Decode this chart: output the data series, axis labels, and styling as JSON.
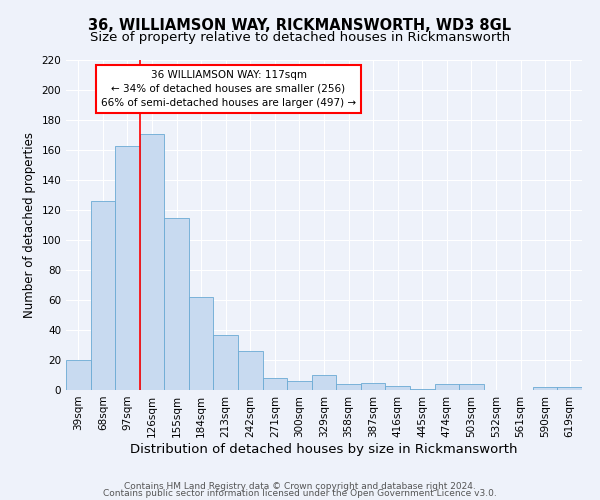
{
  "title": "36, WILLIAMSON WAY, RICKMANSWORTH, WD3 8GL",
  "subtitle": "Size of property relative to detached houses in Rickmansworth",
  "xlabel": "Distribution of detached houses by size in Rickmansworth",
  "ylabel": "Number of detached properties",
  "categories": [
    "39sqm",
    "68sqm",
    "97sqm",
    "126sqm",
    "155sqm",
    "184sqm",
    "213sqm",
    "242sqm",
    "271sqm",
    "300sqm",
    "329sqm",
    "358sqm",
    "387sqm",
    "416sqm",
    "445sqm",
    "474sqm",
    "503sqm",
    "532sqm",
    "561sqm",
    "590sqm",
    "619sqm"
  ],
  "values": [
    20,
    126,
    163,
    171,
    115,
    62,
    37,
    26,
    8,
    6,
    10,
    4,
    5,
    3,
    1,
    4,
    4,
    0,
    0,
    2,
    2
  ],
  "bar_color": "#c8daf0",
  "bar_edge_color": "#6aaad4",
  "annotation_text": "36 WILLIAMSON WAY: 117sqm\n← 34% of detached houses are smaller (256)\n66% of semi-detached houses are larger (497) →",
  "annotation_box_color": "white",
  "annotation_box_edge_color": "red",
  "ylim": [
    0,
    220
  ],
  "yticks": [
    0,
    20,
    40,
    60,
    80,
    100,
    120,
    140,
    160,
    180,
    200,
    220
  ],
  "footer1": "Contains HM Land Registry data © Crown copyright and database right 2024.",
  "footer2": "Contains public sector information licensed under the Open Government Licence v3.0.",
  "background_color": "#eef2fa",
  "grid_color": "white",
  "title_fontsize": 10.5,
  "subtitle_fontsize": 9.5,
  "xlabel_fontsize": 9.5,
  "ylabel_fontsize": 8.5,
  "tick_fontsize": 7.5,
  "footer_fontsize": 6.5
}
